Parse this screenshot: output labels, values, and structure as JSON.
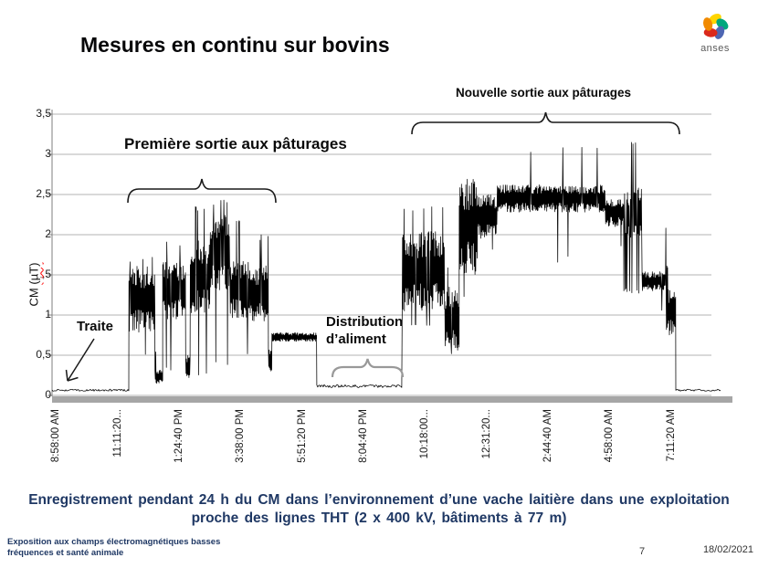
{
  "slide": {
    "title": "Mesures en continu sur bovins",
    "logo": {
      "brand": "anses",
      "petal_colors": [
        "#ffd500",
        "#00a77d",
        "#4d66b3",
        "#da291c",
        "#f18a00"
      ]
    },
    "caption_line1": "Enregistrement pendant 24 h du CM dans l’environnement d’une vache laitière dans une exploitation",
    "caption_line2": "proche des lignes THT (2 x 400 kV, bâtiments à 77 m)",
    "footer": {
      "left_line1": "Exposition aux champs électromagnétiques basses",
      "left_line2": "fréquences et santé animale",
      "page_number": "7",
      "date": "18/02/2021"
    }
  },
  "chart_data": {
    "type": "line",
    "title": "",
    "xlabel": "",
    "ylabel": "CM (µT)",
    "ylabel_prefix": "CM ",
    "ylabel_unit": "(µT)",
    "ylim": [
      0,
      3.5
    ],
    "grid": true,
    "legend": "none",
    "line_color": "#000000",
    "grid_color": "#b3b3b3",
    "axis_color": "#7f7f7f",
    "baseline_bar_color": "#a6a6a6",
    "y_tick_values": [
      3.5,
      3,
      2.5,
      2,
      1.5,
      1,
      0.5,
      0
    ],
    "y_tick_labels": [
      "3,5",
      "3",
      "2,5",
      "2",
      "1,5",
      "1",
      "0,5",
      "0"
    ],
    "x_tick_labels": [
      "8:58:00 AM",
      "11:11:20...",
      "1:24:40 PM",
      "3:38:00 PM",
      "5:51:20 PM",
      "8:04:40 PM",
      "10:18:00...",
      "12:31:20...",
      "2:44:40 AM",
      "4:58:00 AM",
      "7:11:20 AM"
    ],
    "x_span_hours": 24.2,
    "x_tick_start_hour": 0.165,
    "x_tick_step_hours": 2.2222,
    "annotations": {
      "traite": "Traite",
      "premiere_sortie": "Première sortie aux pâturages",
      "nouvelle_sortie": "Nouvelle sortie aux pâturages",
      "distribution_aliment": "Distribution d’aliment"
    },
    "series_segments": [
      {
        "from_h": 0.0,
        "to_h": 2.78,
        "mode": "flat",
        "base": 0.065,
        "jitter": 0.012
      },
      {
        "from_h": 2.78,
        "to_h": 3.72,
        "mode": "noisy",
        "lo": 0.78,
        "hi": 1.62,
        "spike_hi": 1.72,
        "spike_hi_p": 0.05,
        "spike_lo": 0.5,
        "spike_lo_p": 0.04
      },
      {
        "from_h": 3.72,
        "to_h": 4.0,
        "mode": "noisy",
        "lo": 0.14,
        "hi": 0.32,
        "spike_hi": 0.62,
        "spike_hi_p": 0.1
      },
      {
        "from_h": 4.0,
        "to_h": 4.83,
        "mode": "noisy",
        "lo": 0.95,
        "hi": 1.68,
        "spike_hi": 1.92,
        "spike_hi_p": 0.07,
        "spike_lo": 0.28,
        "spike_lo_p": 0.06
      },
      {
        "from_h": 4.83,
        "to_h": 5.0,
        "mode": "noisy",
        "lo": 0.2,
        "hi": 0.5
      },
      {
        "from_h": 5.0,
        "to_h": 5.72,
        "mode": "noisy",
        "lo": 1.0,
        "hi": 1.95,
        "spike_hi": 2.35,
        "spike_hi_p": 0.09,
        "spike_lo": 0.25,
        "spike_lo_p": 0.05
      },
      {
        "from_h": 5.72,
        "to_h": 6.43,
        "mode": "noisy",
        "lo": 1.3,
        "hi": 2.28,
        "spike_hi": 2.45,
        "spike_hi_p": 0.1,
        "spike_lo": 0.35,
        "spike_lo_p": 0.04
      },
      {
        "from_h": 6.43,
        "to_h": 7.15,
        "mode": "noisy",
        "lo": 0.95,
        "hi": 1.7,
        "spike_hi": 2.2,
        "spike_hi_p": 0.05,
        "spike_lo": 0.5,
        "spike_lo_p": 0.03
      },
      {
        "from_h": 7.15,
        "to_h": 7.82,
        "mode": "noisy",
        "lo": 0.9,
        "hi": 1.62,
        "spike_hi": 2.0,
        "spike_hi_p": 0.06
      },
      {
        "from_h": 7.82,
        "to_h": 7.95,
        "mode": "noisy",
        "lo": 0.3,
        "hi": 0.6
      },
      {
        "from_h": 7.95,
        "to_h": 9.57,
        "mode": "noisy",
        "lo": 0.67,
        "hi": 0.78
      },
      {
        "from_h": 9.57,
        "to_h": 12.67,
        "mode": "flat",
        "base": 0.115,
        "jitter": 0.018
      },
      {
        "from_h": 12.67,
        "to_h": 14.2,
        "mode": "noisy",
        "lo": 1.05,
        "hi": 2.05,
        "spike_hi": 2.35,
        "spike_hi_p": 0.06,
        "spike_hi2": 2.9,
        "spike_hi2_p": 0.012,
        "spike_lo": 0.85,
        "spike_lo_p": 0.04
      },
      {
        "from_h": 14.2,
        "to_h": 14.72,
        "mode": "noisy",
        "lo": 0.55,
        "hi": 1.35,
        "spike_hi": 1.6,
        "spike_hi_p": 0.05,
        "spike_lo": 0.45,
        "spike_lo_p": 0.05
      },
      {
        "from_h": 14.72,
        "to_h": 15.38,
        "mode": "noisy",
        "lo": 1.5,
        "hi": 2.72,
        "spike_hi": 3.28,
        "spike_hi_p": 0.03,
        "spike_lo": 1.2,
        "spike_lo_p": 0.04
      },
      {
        "from_h": 15.38,
        "to_h": 16.1,
        "mode": "noisy",
        "lo": 1.95,
        "hi": 2.5,
        "spike_lo": 1.75,
        "spike_lo_p": 0.03
      },
      {
        "from_h": 16.1,
        "to_h": 20.0,
        "mode": "noisy",
        "lo": 2.28,
        "hi": 2.62,
        "spike_hi": 3.1,
        "spike_hi_p": 0.012,
        "spike_lo": 1.65,
        "spike_lo_p": 0.015
      },
      {
        "from_h": 20.0,
        "to_h": 20.67,
        "mode": "noisy",
        "lo": 2.1,
        "hi": 2.45,
        "spike_hi": 2.95,
        "spike_hi_p": 0.02,
        "spike_lo": 1.8,
        "spike_lo_p": 0.02
      },
      {
        "from_h": 20.67,
        "to_h": 21.33,
        "mode": "noisy",
        "lo": 1.9,
        "hi": 2.6,
        "spike_hi": 3.18,
        "spike_hi_p": 0.09,
        "spike_lo": 1.25,
        "spike_lo_p": 0.05
      },
      {
        "from_h": 21.33,
        "to_h": 22.2,
        "mode": "noisy",
        "lo": 1.3,
        "hi": 1.54,
        "spike_hi": 2.1,
        "spike_hi_p": 0.02,
        "spike_lo": 1.05,
        "spike_lo_p": 0.02
      },
      {
        "from_h": 22.2,
        "to_h": 22.55,
        "mode": "noisy",
        "lo": 0.75,
        "hi": 1.32,
        "spike_hi": 1.62,
        "spike_hi_p": 0.08
      },
      {
        "from_h": 22.55,
        "to_h": 24.2,
        "mode": "flat",
        "base": 0.065,
        "jitter": 0.012
      }
    ]
  }
}
